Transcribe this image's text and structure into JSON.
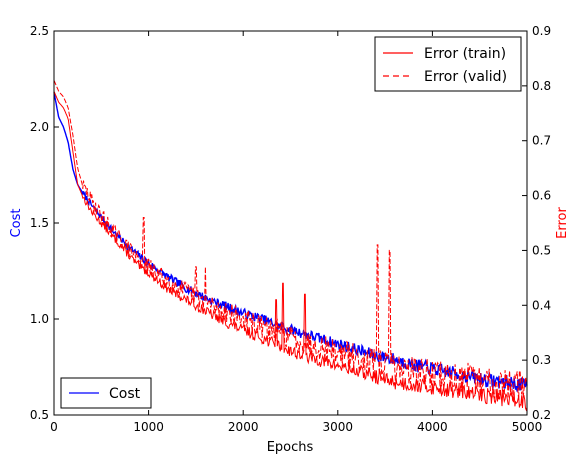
{
  "chart_data": {
    "type": "line",
    "xlabel": "Epochs",
    "ylabel_left": "Cost",
    "ylabel_right": "Error",
    "xlim": [
      0,
      5000
    ],
    "ylim_left": [
      0.5,
      2.5
    ],
    "ylim_right": [
      0.2,
      0.9
    ],
    "xticks": [
      "0",
      "1000",
      "2000",
      "3000",
      "4000",
      "5000"
    ],
    "yticks_left": [
      "0.5",
      "1.0",
      "1.5",
      "2.0",
      "2.5"
    ],
    "yticks_right": [
      "0.2",
      "0.3",
      "0.4",
      "0.5",
      "0.6",
      "0.7",
      "0.8",
      "0.9"
    ],
    "grid": false,
    "colors": {
      "cost": "#0000ff",
      "error": "#ff0000"
    },
    "legend_left": {
      "placement": "lower-left",
      "entries": [
        "Cost"
      ]
    },
    "legend_right": {
      "placement": "upper-right",
      "entries": [
        "Error (train)",
        "Error (valid)"
      ]
    },
    "series": [
      {
        "name": "Cost",
        "axis": "left",
        "style": "solid",
        "color": "#0000ff",
        "x": [
          0,
          50,
          100,
          150,
          200,
          250,
          300,
          400,
          500,
          600,
          700,
          800,
          900,
          1000,
          1200,
          1400,
          1600,
          1800,
          2000,
          2200,
          2400,
          2600,
          2800,
          3000,
          3200,
          3400,
          3600,
          3800,
          4000,
          4200,
          4400,
          4600,
          4800,
          5000
        ],
        "values": [
          2.18,
          2.05,
          2.0,
          1.92,
          1.78,
          1.7,
          1.66,
          1.59,
          1.53,
          1.47,
          1.42,
          1.37,
          1.33,
          1.29,
          1.22,
          1.16,
          1.11,
          1.07,
          1.03,
          1.0,
          0.96,
          0.93,
          0.9,
          0.87,
          0.84,
          0.81,
          0.79,
          0.76,
          0.74,
          0.72,
          0.7,
          0.68,
          0.67,
          0.65
        ],
        "noise": 0.025
      },
      {
        "name": "Error (train)",
        "axis": "right",
        "style": "solid",
        "color": "#ff0000",
        "x": [
          0,
          50,
          100,
          150,
          200,
          250,
          300,
          400,
          500,
          600,
          700,
          800,
          900,
          1000,
          1200,
          1400,
          1600,
          1800,
          2000,
          2200,
          2400,
          2600,
          2800,
          3000,
          3200,
          3400,
          3600,
          3800,
          4000,
          4200,
          4400,
          4600,
          4800,
          5000
        ],
        "values": [
          0.79,
          0.77,
          0.76,
          0.74,
          0.68,
          0.62,
          0.6,
          0.57,
          0.55,
          0.53,
          0.51,
          0.49,
          0.47,
          0.46,
          0.43,
          0.41,
          0.39,
          0.37,
          0.355,
          0.34,
          0.325,
          0.31,
          0.3,
          0.29,
          0.28,
          0.27,
          0.26,
          0.255,
          0.25,
          0.245,
          0.24,
          0.235,
          0.23,
          0.225
        ],
        "noise": 0.01,
        "spikes": [
          [
            2350,
            0.41
          ],
          [
            2420,
            0.44
          ],
          [
            2650,
            0.42
          ]
        ]
      },
      {
        "name": "Error (valid)",
        "axis": "right",
        "style": "dashed",
        "color": "#ff0000",
        "x": [
          0,
          50,
          100,
          150,
          200,
          250,
          300,
          400,
          500,
          600,
          700,
          800,
          900,
          1000,
          1200,
          1400,
          1600,
          1800,
          2000,
          2200,
          2400,
          2600,
          2800,
          3000,
          3200,
          3400,
          3600,
          3800,
          4000,
          4200,
          4400,
          4600,
          4800,
          5000
        ],
        "values": [
          0.81,
          0.79,
          0.78,
          0.76,
          0.71,
          0.65,
          0.62,
          0.59,
          0.565,
          0.54,
          0.52,
          0.5,
          0.485,
          0.47,
          0.445,
          0.425,
          0.405,
          0.39,
          0.375,
          0.36,
          0.35,
          0.335,
          0.325,
          0.315,
          0.305,
          0.295,
          0.29,
          0.28,
          0.275,
          0.27,
          0.265,
          0.26,
          0.255,
          0.25
        ],
        "noise": 0.02,
        "spikes": [
          [
            950,
            0.56
          ],
          [
            1500,
            0.47
          ],
          [
            1600,
            0.47
          ],
          [
            3420,
            0.51
          ],
          [
            3550,
            0.5
          ]
        ]
      }
    ]
  }
}
